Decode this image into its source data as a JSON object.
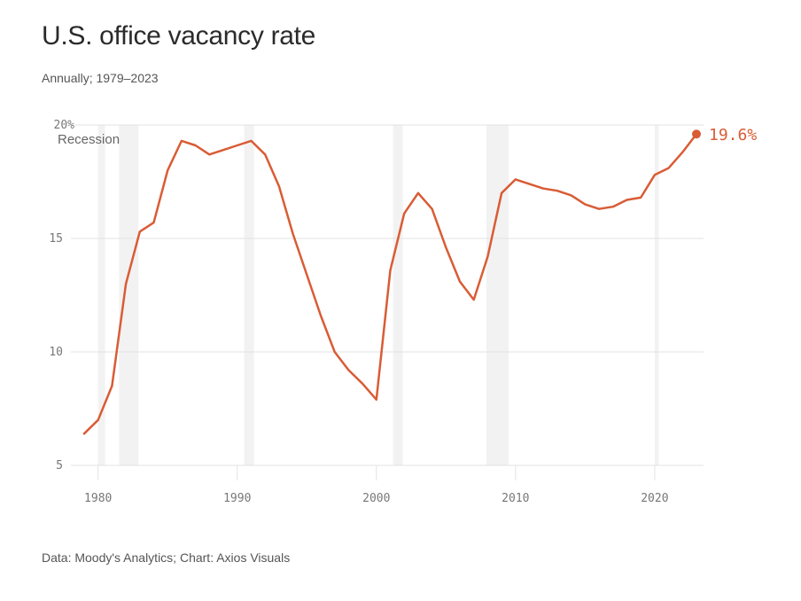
{
  "header": {
    "title": "U.S. office vacancy rate",
    "subtitle": "Annually; 1979–2023"
  },
  "footer": {
    "source": "Data: Moody's Analytics; Chart: Axios Visuals"
  },
  "colors": {
    "line": "#d95c35",
    "recession": "#f2f2f2",
    "grid": "#e3e3e3"
  },
  "chart_data": {
    "type": "line",
    "title": "U.S. office vacancy rate",
    "subtitle": "Annually; 1979–2023",
    "xlabel": "",
    "ylabel": "",
    "xlim": [
      1979,
      2023
    ],
    "ylim": [
      5,
      20
    ],
    "grid": true,
    "y_ticks": [
      {
        "value": 20,
        "label": "20%"
      },
      {
        "value": 15,
        "label": "15"
      },
      {
        "value": 10,
        "label": "10"
      },
      {
        "value": 5,
        "label": "5"
      }
    ],
    "x_ticks": [
      {
        "value": 1980,
        "label": "1980"
      },
      {
        "value": 1990,
        "label": "1990"
      },
      {
        "value": 2000,
        "label": "2000"
      },
      {
        "value": 2010,
        "label": "2010"
      },
      {
        "value": 2020,
        "label": "2020"
      }
    ],
    "recession_label": "Recession",
    "recessions": [
      [
        1980.0,
        1980.5
      ],
      [
        1981.5,
        1982.9
      ],
      [
        1990.5,
        1991.2
      ],
      [
        2001.2,
        2001.9
      ],
      [
        2007.9,
        2009.5
      ],
      [
        2020.0,
        2020.3
      ]
    ],
    "series": [
      {
        "name": "Office vacancy rate",
        "x": [
          1979,
          1980,
          1981,
          1982,
          1983,
          1984,
          1985,
          1986,
          1987,
          1988,
          1989,
          1990,
          1991,
          1992,
          1993,
          1994,
          1995,
          1996,
          1997,
          1998,
          1999,
          2000,
          2001,
          2002,
          2003,
          2004,
          2005,
          2006,
          2007,
          2008,
          2009,
          2010,
          2011,
          2012,
          2013,
          2014,
          2015,
          2016,
          2017,
          2018,
          2019,
          2020,
          2021,
          2022,
          2023
        ],
        "values": [
          6.4,
          7.0,
          8.5,
          13.0,
          15.3,
          15.7,
          18.0,
          19.3,
          19.1,
          18.7,
          18.9,
          19.1,
          19.3,
          18.7,
          17.3,
          15.2,
          13.4,
          11.6,
          10.0,
          9.2,
          8.6,
          7.9,
          13.6,
          16.1,
          17.0,
          16.3,
          14.6,
          13.1,
          12.3,
          14.2,
          17.0,
          17.6,
          17.4,
          17.2,
          17.1,
          16.9,
          16.5,
          16.3,
          16.4,
          16.7,
          16.8,
          17.8,
          18.1,
          18.8,
          19.6
        ]
      }
    ],
    "annotations": [
      {
        "x": 2023,
        "y": 19.6,
        "label": "19.6%"
      }
    ]
  }
}
